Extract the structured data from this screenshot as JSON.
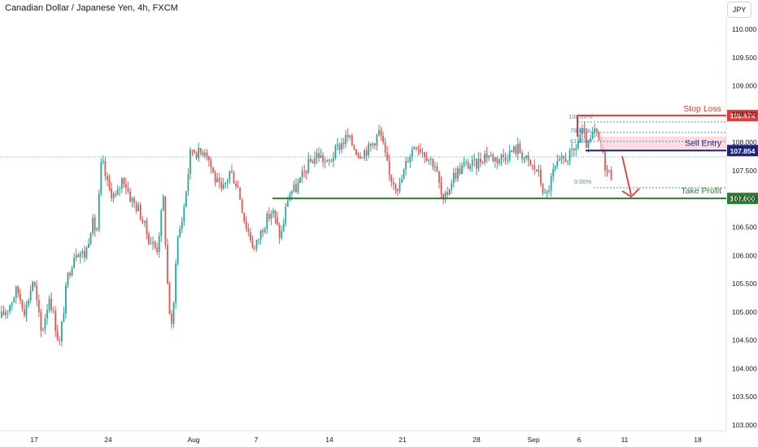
{
  "header": {
    "title": "Canadian Dollar / Japanese Yen, 4h, FXCM",
    "currency_button": "JPY"
  },
  "colors": {
    "up": "#26a69a",
    "down": "#ef5350",
    "stop": "#e53935",
    "entry": "#1a237e",
    "target": "#2e7d32",
    "zone": "#ffcdd2",
    "fib": "#4a90c4"
  },
  "chart_data": {
    "type": "candlestick",
    "title": "Canadian Dollar / Japanese Yen, 4h, FXCM",
    "ylim": [
      103.0,
      110.5
    ],
    "y_ticks": [
      "110.000",
      "109.500",
      "109.000",
      "108.500",
      "108.000",
      "107.500",
      "107.000",
      "106.500",
      "106.000",
      "105.500",
      "105.000",
      "104.500",
      "104.000",
      "103.500",
      "103.000"
    ],
    "x_ticks": [
      "17",
      "24",
      "Aug",
      "7",
      "14",
      "21",
      "28",
      "Sep",
      "6",
      "11",
      "18"
    ],
    "levels": [
      {
        "name": "Stop Loss",
        "value": "108.474"
      },
      {
        "name": "Sell Entry",
        "value": "107.854"
      },
      {
        "name": "Take Profit",
        "value": "107.008"
      }
    ],
    "fib_labels": [
      "100.00%",
      "78.60%",
      "61.80%",
      "0.00%"
    ],
    "price_path": [
      [
        0,
        104.9
      ],
      [
        10,
        105.1
      ],
      [
        20,
        105.4
      ],
      [
        30,
        105.0
      ],
      [
        40,
        105.6
      ],
      [
        50,
        104.6
      ],
      [
        60,
        105.3
      ],
      [
        72,
        104.4
      ],
      [
        82,
        105.6
      ],
      [
        92,
        106.1
      ],
      [
        104,
        106.0
      ],
      [
        112,
        106.6
      ],
      [
        118,
        106.4
      ],
      [
        124,
        107.7
      ],
      [
        132,
        107.2
      ],
      [
        142,
        107.0
      ],
      [
        150,
        107.4
      ],
      [
        160,
        107.0
      ],
      [
        170,
        106.8
      ],
      [
        182,
        106.3
      ],
      [
        192,
        106.1
      ],
      [
        200,
        107.0
      ],
      [
        206,
        105.2
      ],
      [
        211,
        104.6
      ],
      [
        216,
        106.2
      ],
      [
        224,
        106.7
      ],
      [
        234,
        107.9
      ],
      [
        244,
        107.8
      ],
      [
        252,
        107.9
      ],
      [
        262,
        107.4
      ],
      [
        272,
        107.1
      ],
      [
        282,
        107.5
      ],
      [
        292,
        107.2
      ],
      [
        300,
        106.6
      ],
      [
        312,
        106.1
      ],
      [
        322,
        106.5
      ],
      [
        334,
        106.8
      ],
      [
        344,
        106.3
      ],
      [
        354,
        107.1
      ],
      [
        364,
        107.2
      ],
      [
        378,
        107.6
      ],
      [
        390,
        107.8
      ],
      [
        402,
        107.6
      ],
      [
        414,
        107.9
      ],
      [
        426,
        108.1
      ],
      [
        440,
        107.8
      ],
      [
        454,
        107.9
      ],
      [
        466,
        108.2
      ],
      [
        478,
        107.4
      ],
      [
        490,
        107.2
      ],
      [
        500,
        107.7
      ],
      [
        510,
        108.0
      ],
      [
        522,
        107.8
      ],
      [
        534,
        107.6
      ],
      [
        544,
        106.9
      ],
      [
        556,
        107.4
      ],
      [
        570,
        107.6
      ],
      [
        584,
        107.6
      ],
      [
        596,
        107.8
      ],
      [
        610,
        107.7
      ],
      [
        624,
        107.8
      ],
      [
        636,
        107.9
      ],
      [
        650,
        107.6
      ],
      [
        660,
        107.5
      ],
      [
        670,
        107.0
      ],
      [
        680,
        107.5
      ],
      [
        692,
        107.7
      ],
      [
        704,
        107.8
      ],
      [
        714,
        108.2
      ],
      [
        722,
        107.9
      ],
      [
        730,
        108.2
      ],
      [
        738,
        107.9
      ],
      [
        745,
        107.5
      ],
      [
        752,
        107.4
      ]
    ]
  },
  "annotations": {
    "stop_loss": "Stop Loss",
    "sell_entry": "Sell Entry",
    "take_profit": "Take Profit"
  }
}
